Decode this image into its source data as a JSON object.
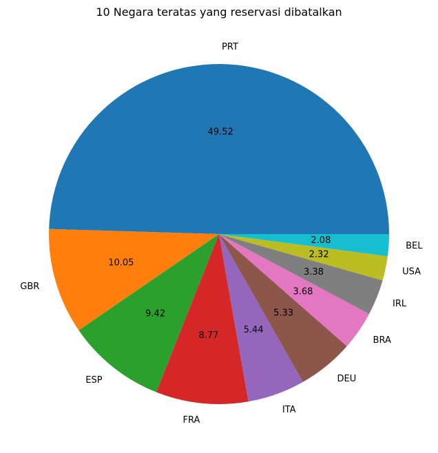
{
  "chart_data": {
    "type": "pie",
    "title": "10 Negara teratas yang reservasi dibatalkan",
    "categories": [
      "PRT",
      "GBR",
      "ESP",
      "FRA",
      "ITA",
      "DEU",
      "BRA",
      "IRL",
      "USA",
      "BEL"
    ],
    "values": [
      49.52,
      10.05,
      9.42,
      8.77,
      5.44,
      5.33,
      3.68,
      3.38,
      2.32,
      2.08
    ],
    "value_labels": [
      "49.52",
      "10.05",
      "9.42",
      "8.77",
      "5.44",
      "5.33",
      "3.68",
      "3.38",
      "2.32",
      "2.08"
    ],
    "colors": [
      "#1f77b4",
      "#ff7f0e",
      "#2ca02c",
      "#d62728",
      "#9467bd",
      "#8c564b",
      "#e377c2",
      "#7f7f7f",
      "#bcbd22",
      "#17becf"
    ],
    "start_angle_deg": 0,
    "direction": "counterclockwise",
    "legend": "none",
    "grid": false
  }
}
